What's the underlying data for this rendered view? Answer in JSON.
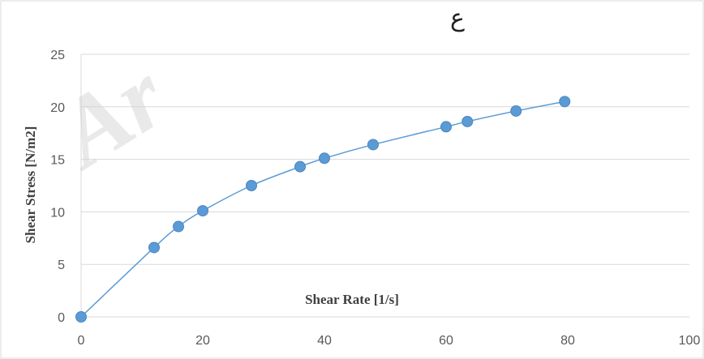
{
  "watermark_text": "Ar",
  "top_glyph": "ع",
  "chart_data": {
    "type": "scatter",
    "title": "",
    "xlabel": "Shear Rate [1/s]",
    "ylabel": "Shear Stress [N/m2]",
    "xlim": [
      0,
      100
    ],
    "ylim": [
      0,
      25
    ],
    "x_ticks": [
      "0",
      "20",
      "40",
      "60",
      "80",
      "100"
    ],
    "y_ticks": [
      "0",
      "5",
      "10",
      "15",
      "20",
      "25"
    ],
    "grid": true,
    "line": "smooth",
    "marker_color": "#5b9bd5",
    "line_color": "#5b9bd5",
    "series": [
      {
        "x": [
          0,
          12,
          16,
          20,
          28,
          36,
          40,
          48,
          60,
          63.5,
          71.5,
          79.5
        ],
        "y": [
          0,
          6.6,
          8.6,
          10.1,
          12.5,
          14.3,
          15.1,
          16.4,
          18.1,
          18.6,
          19.6,
          20.5
        ]
      }
    ]
  }
}
